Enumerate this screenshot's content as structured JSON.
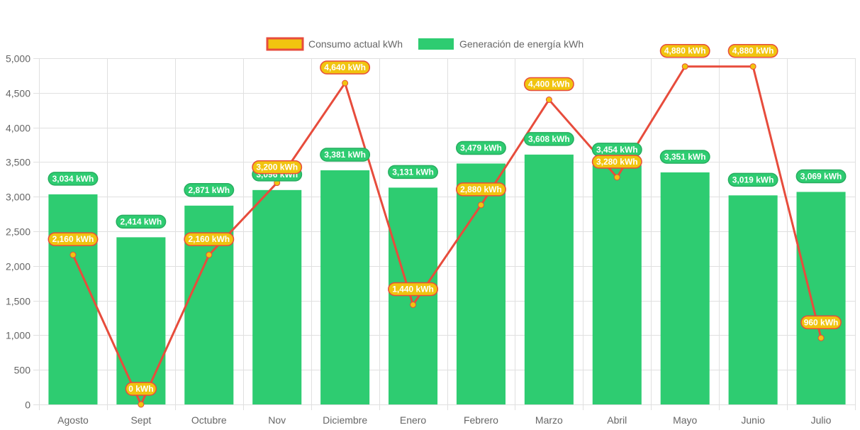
{
  "chart_data": {
    "type": "bar",
    "title": "",
    "xlabel": "",
    "ylabel": "",
    "ylim": [
      0,
      5000
    ],
    "yticks": [
      0,
      500,
      1000,
      1500,
      2000,
      2500,
      3000,
      3500,
      4000,
      4500,
      5000
    ],
    "ytick_labels": [
      "0",
      "500",
      "1,000",
      "1,500",
      "2,000",
      "2,500",
      "3,000",
      "3,500",
      "4,000",
      "4,500",
      "5,000"
    ],
    "grid": true,
    "legend_position": "top",
    "categories": [
      "Agosto",
      "Sept",
      "Octubre",
      "Nov",
      "Diciembre",
      "Enero",
      "Febrero",
      "Marzo",
      "Abril",
      "Mayo",
      "Junio",
      "Julio"
    ],
    "series": [
      {
        "name": "Consumo actual kWh",
        "type": "line",
        "color": "#e74c3c",
        "fill": "#f1c40f",
        "values": [
          2160,
          0,
          2160,
          3200,
          4640,
          1440,
          2880,
          4400,
          3280,
          4880,
          4880,
          960
        ],
        "labels": [
          "2,160 kWh",
          "0 kWh",
          "2,160 kWh",
          "3,200 kWh",
          "4,640 kWh",
          "1,440 kWh",
          "2,880 kWh",
          "4,400 kWh",
          "3,280 kWh",
          "4,880 kWh",
          "4,880 kWh",
          "960 kWh"
        ]
      },
      {
        "name": "Generación de energía kWh",
        "type": "bar",
        "color": "#2ecc71",
        "values": [
          3034,
          2414,
          2871,
          3096,
          3381,
          3131,
          3479,
          3608,
          3454,
          3351,
          3019,
          3069
        ],
        "labels": [
          "3,034 kWh",
          "2,414 kWh",
          "2,871 kWh",
          "3,096 kWh",
          "3,381 kWh",
          "3,131 kWh",
          "3,479 kWh",
          "3,608 kWh",
          "3,454 kWh",
          "3,351 kWh",
          "3,019 kWh",
          "3,069 kWh"
        ]
      }
    ]
  }
}
